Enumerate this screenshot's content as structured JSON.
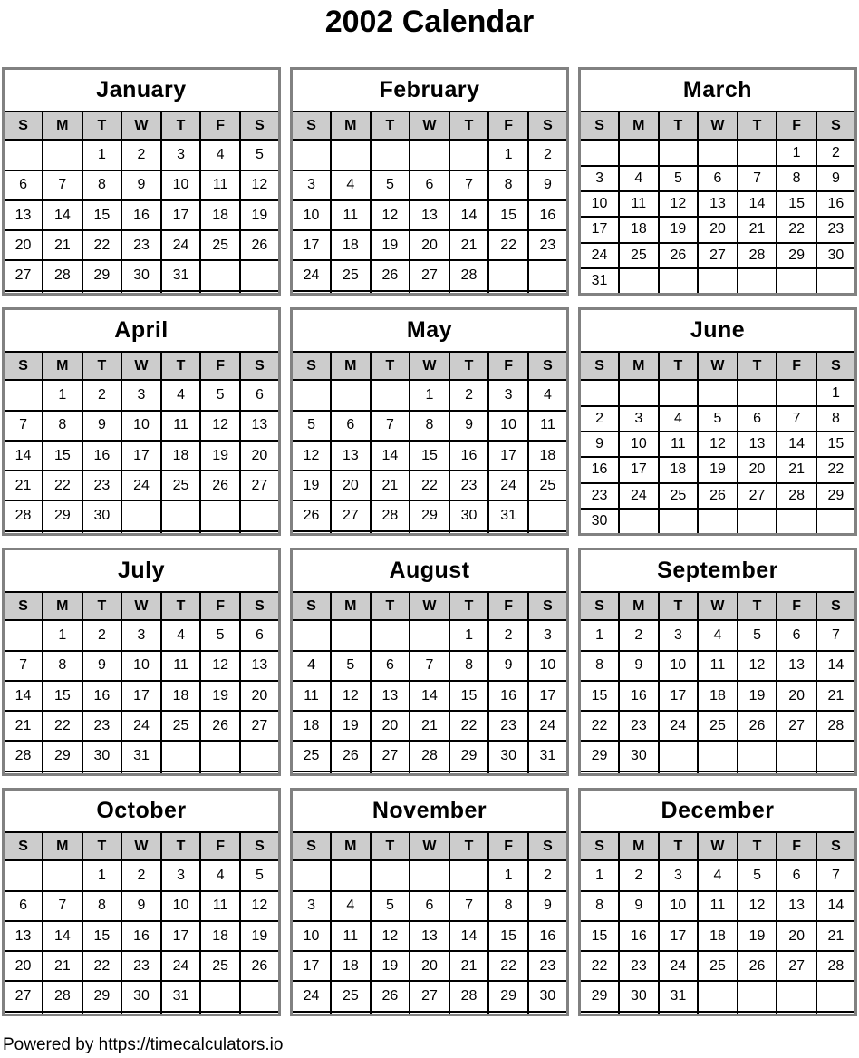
{
  "page": {
    "title": "2002 Calendar",
    "footer": {
      "prefix": "Powered by ",
      "link": "https://timecalculators.io"
    }
  },
  "calendar": {
    "year": "2002",
    "day_headers": [
      "S",
      "M",
      "T",
      "W",
      "T",
      "F",
      "S"
    ],
    "colors": {
      "day_header_bg": "#cccccc",
      "grid_line": "#000000",
      "table_outer_border": "#818181",
      "text": "#000000",
      "page_bg": "#ffffff"
    },
    "months": [
      {
        "name": "January",
        "weeks": [
          [
            "",
            "",
            "1",
            "2",
            "3",
            "4",
            "5"
          ],
          [
            "6",
            "7",
            "8",
            "9",
            "10",
            "11",
            "12"
          ],
          [
            "13",
            "14",
            "15",
            "16",
            "17",
            "18",
            "19"
          ],
          [
            "20",
            "21",
            "22",
            "23",
            "24",
            "25",
            "26"
          ],
          [
            "27",
            "28",
            "29",
            "30",
            "31",
            "",
            ""
          ],
          [
            "",
            "",
            "",
            "",
            "",
            "",
            ""
          ]
        ]
      },
      {
        "name": "February",
        "weeks": [
          [
            "",
            "",
            "",
            "",
            "",
            "1",
            "2"
          ],
          [
            "3",
            "4",
            "5",
            "6",
            "7",
            "8",
            "9"
          ],
          [
            "10",
            "11",
            "12",
            "13",
            "14",
            "15",
            "16"
          ],
          [
            "17",
            "18",
            "19",
            "20",
            "21",
            "22",
            "23"
          ],
          [
            "24",
            "25",
            "26",
            "27",
            "28",
            "",
            ""
          ],
          [
            "",
            "",
            "",
            "",
            "",
            "",
            ""
          ]
        ]
      },
      {
        "name": "March",
        "weeks": [
          [
            "",
            "",
            "",
            "",
            "",
            "1",
            "2"
          ],
          [
            "3",
            "4",
            "5",
            "6",
            "7",
            "8",
            "9"
          ],
          [
            "10",
            "11",
            "12",
            "13",
            "14",
            "15",
            "16"
          ],
          [
            "17",
            "18",
            "19",
            "20",
            "21",
            "22",
            "23"
          ],
          [
            "24",
            "25",
            "26",
            "27",
            "28",
            "29",
            "30"
          ],
          [
            "31",
            "",
            "",
            "",
            "",
            "",
            ""
          ]
        ]
      },
      {
        "name": "April",
        "weeks": [
          [
            "",
            "1",
            "2",
            "3",
            "4",
            "5",
            "6"
          ],
          [
            "7",
            "8",
            "9",
            "10",
            "11",
            "12",
            "13"
          ],
          [
            "14",
            "15",
            "16",
            "17",
            "18",
            "19",
            "20"
          ],
          [
            "21",
            "22",
            "23",
            "24",
            "25",
            "26",
            "27"
          ],
          [
            "28",
            "29",
            "30",
            "",
            "",
            "",
            ""
          ],
          [
            "",
            "",
            "",
            "",
            "",
            "",
            ""
          ]
        ]
      },
      {
        "name": "May",
        "weeks": [
          [
            "",
            "",
            "",
            "1",
            "2",
            "3",
            "4"
          ],
          [
            "5",
            "6",
            "7",
            "8",
            "9",
            "10",
            "11"
          ],
          [
            "12",
            "13",
            "14",
            "15",
            "16",
            "17",
            "18"
          ],
          [
            "19",
            "20",
            "21",
            "22",
            "23",
            "24",
            "25"
          ],
          [
            "26",
            "27",
            "28",
            "29",
            "30",
            "31",
            ""
          ],
          [
            "",
            "",
            "",
            "",
            "",
            "",
            ""
          ]
        ]
      },
      {
        "name": "June",
        "weeks": [
          [
            "",
            "",
            "",
            "",
            "",
            "",
            "1"
          ],
          [
            "2",
            "3",
            "4",
            "5",
            "6",
            "7",
            "8"
          ],
          [
            "9",
            "10",
            "11",
            "12",
            "13",
            "14",
            "15"
          ],
          [
            "16",
            "17",
            "18",
            "19",
            "20",
            "21",
            "22"
          ],
          [
            "23",
            "24",
            "25",
            "26",
            "27",
            "28",
            "29"
          ],
          [
            "30",
            "",
            "",
            "",
            "",
            "",
            ""
          ]
        ]
      },
      {
        "name": "July",
        "weeks": [
          [
            "",
            "1",
            "2",
            "3",
            "4",
            "5",
            "6"
          ],
          [
            "7",
            "8",
            "9",
            "10",
            "11",
            "12",
            "13"
          ],
          [
            "14",
            "15",
            "16",
            "17",
            "18",
            "19",
            "20"
          ],
          [
            "21",
            "22",
            "23",
            "24",
            "25",
            "26",
            "27"
          ],
          [
            "28",
            "29",
            "30",
            "31",
            "",
            "",
            ""
          ],
          [
            "",
            "",
            "",
            "",
            "",
            "",
            ""
          ]
        ]
      },
      {
        "name": "August",
        "weeks": [
          [
            "",
            "",
            "",
            "",
            "1",
            "2",
            "3"
          ],
          [
            "4",
            "5",
            "6",
            "7",
            "8",
            "9",
            "10"
          ],
          [
            "11",
            "12",
            "13",
            "14",
            "15",
            "16",
            "17"
          ],
          [
            "18",
            "19",
            "20",
            "21",
            "22",
            "23",
            "24"
          ],
          [
            "25",
            "26",
            "27",
            "28",
            "29",
            "30",
            "31"
          ],
          [
            "",
            "",
            "",
            "",
            "",
            "",
            ""
          ]
        ]
      },
      {
        "name": "September",
        "weeks": [
          [
            "1",
            "2",
            "3",
            "4",
            "5",
            "6",
            "7"
          ],
          [
            "8",
            "9",
            "10",
            "11",
            "12",
            "13",
            "14"
          ],
          [
            "15",
            "16",
            "17",
            "18",
            "19",
            "20",
            "21"
          ],
          [
            "22",
            "23",
            "24",
            "25",
            "26",
            "27",
            "28"
          ],
          [
            "29",
            "30",
            "",
            "",
            "",
            "",
            ""
          ],
          [
            "",
            "",
            "",
            "",
            "",
            "",
            ""
          ]
        ]
      },
      {
        "name": "October",
        "weeks": [
          [
            "",
            "",
            "1",
            "2",
            "3",
            "4",
            "5"
          ],
          [
            "6",
            "7",
            "8",
            "9",
            "10",
            "11",
            "12"
          ],
          [
            "13",
            "14",
            "15",
            "16",
            "17",
            "18",
            "19"
          ],
          [
            "20",
            "21",
            "22",
            "23",
            "24",
            "25",
            "26"
          ],
          [
            "27",
            "28",
            "29",
            "30",
            "31",
            "",
            ""
          ],
          [
            "",
            "",
            "",
            "",
            "",
            "",
            ""
          ]
        ]
      },
      {
        "name": "November",
        "weeks": [
          [
            "",
            "",
            "",
            "",
            "",
            "1",
            "2"
          ],
          [
            "3",
            "4",
            "5",
            "6",
            "7",
            "8",
            "9"
          ],
          [
            "10",
            "11",
            "12",
            "13",
            "14",
            "15",
            "16"
          ],
          [
            "17",
            "18",
            "19",
            "20",
            "21",
            "22",
            "23"
          ],
          [
            "24",
            "25",
            "26",
            "27",
            "28",
            "29",
            "30"
          ],
          [
            "",
            "",
            "",
            "",
            "",
            "",
            ""
          ]
        ]
      },
      {
        "name": "December",
        "weeks": [
          [
            "1",
            "2",
            "3",
            "4",
            "5",
            "6",
            "7"
          ],
          [
            "8",
            "9",
            "10",
            "11",
            "12",
            "13",
            "14"
          ],
          [
            "15",
            "16",
            "17",
            "18",
            "19",
            "20",
            "21"
          ],
          [
            "22",
            "23",
            "24",
            "25",
            "26",
            "27",
            "28"
          ],
          [
            "29",
            "30",
            "31",
            "",
            "",
            "",
            ""
          ],
          [
            "",
            "",
            "",
            "",
            "",
            "",
            ""
          ]
        ]
      }
    ]
  }
}
